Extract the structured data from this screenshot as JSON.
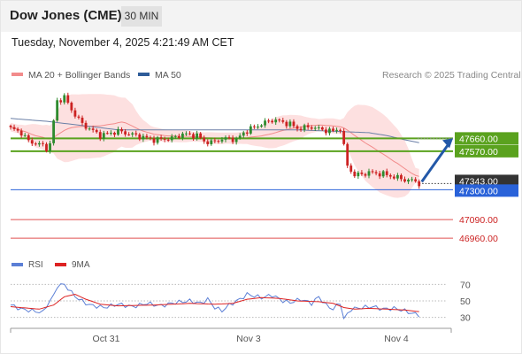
{
  "header": {
    "title": "Dow Jones (CME)",
    "timeframe": "30 MIN"
  },
  "timestamp": "Tuesday, November 4, 2025 4:21:49 AM CET",
  "legend": {
    "items": [
      {
        "label": "MA 20 + Bollinger Bands",
        "color": "#f28b8b"
      },
      {
        "label": "MA 50",
        "color": "#2e5c99"
      }
    ],
    "credit": "Research © 2025 Trading Central"
  },
  "colors": {
    "up": "#2e8b2e",
    "down": "#cc2222",
    "support_green": "#5aa21e",
    "pivot_blue": "#2962d9",
    "resistance_red": "#e05050",
    "bb_fill": "#fde0e0"
  },
  "chart_data": [
    {
      "type": "candlestick",
      "x_tick_labels": [
        "Oct 31",
        "Nov 3",
        "Nov 4"
      ],
      "ylim": [
        46880,
        48010
      ],
      "key_levels": [
        {
          "label": "47660.00",
          "value": 47660,
          "style": "green"
        },
        {
          "label": "47570.00",
          "value": 47570,
          "style": "green"
        },
        {
          "label": "47343.00",
          "value": 47343,
          "style": "last"
        },
        {
          "label": "47300.00",
          "value": 47300,
          "style": "pivot"
        },
        {
          "label": "47090.00",
          "value": 47090,
          "style": "red"
        },
        {
          "label": "46960.00",
          "value": 46960,
          "style": "red"
        }
      ],
      "close_anchors": [
        [
          0,
          47730
        ],
        [
          3,
          47700
        ],
        [
          5,
          47640
        ],
        [
          9,
          47610
        ],
        [
          10,
          47590
        ],
        [
          11,
          47620
        ],
        [
          12,
          47780
        ],
        [
          13,
          47920
        ],
        [
          15,
          47950
        ],
        [
          17,
          47860
        ],
        [
          20,
          47760
        ],
        [
          25,
          47680
        ],
        [
          30,
          47710
        ],
        [
          35,
          47680
        ],
        [
          40,
          47650
        ],
        [
          45,
          47660
        ],
        [
          48,
          47690
        ],
        [
          52,
          47680
        ],
        [
          54,
          47640
        ],
        [
          56,
          47630
        ],
        [
          58,
          47650
        ],
        [
          61,
          47660
        ],
        [
          63,
          47650
        ],
        [
          65,
          47700
        ],
        [
          68,
          47740
        ],
        [
          71,
          47770
        ],
        [
          73,
          47790
        ],
        [
          75,
          47780
        ],
        [
          78,
          47760
        ],
        [
          80,
          47730
        ],
        [
          84,
          47740
        ],
        [
          87,
          47720
        ],
        [
          90,
          47710
        ],
        [
          92,
          47730
        ],
        [
          94,
          47470
        ],
        [
          96,
          47400
        ],
        [
          100,
          47420
        ],
        [
          104,
          47410
        ],
        [
          107,
          47390
        ],
        [
          110,
          47370
        ],
        [
          113,
          47360
        ],
        [
          114,
          47343
        ]
      ],
      "ma50_anchors": [
        [
          0,
          47800
        ],
        [
          10,
          47780
        ],
        [
          20,
          47750
        ],
        [
          30,
          47720
        ],
        [
          40,
          47720
        ],
        [
          60,
          47720
        ],
        [
          80,
          47720
        ],
        [
          90,
          47710
        ],
        [
          100,
          47700
        ],
        [
          105,
          47680
        ],
        [
          110,
          47650
        ],
        [
          114,
          47630
        ]
      ],
      "forecast_arrow": {
        "from": 47343,
        "to": 47660
      },
      "series": [
        {
          "name": "MA 20 + Bollinger Bands"
        },
        {
          "name": "MA 50"
        }
      ]
    },
    {
      "type": "line",
      "legend": [
        {
          "name": "RSI",
          "color": "#5b7fd6"
        },
        {
          "name": "9MA",
          "color": "#dd2222"
        }
      ],
      "ylim": [
        20,
        80
      ],
      "y_tick_labels": [
        "70",
        "50",
        "30"
      ],
      "reference_lines": [
        70,
        50,
        30
      ],
      "rsi_anchors": [
        [
          0,
          45
        ],
        [
          3,
          40
        ],
        [
          6,
          38
        ],
        [
          9,
          36
        ],
        [
          10,
          44
        ],
        [
          12,
          56
        ],
        [
          13,
          68
        ],
        [
          15,
          70
        ],
        [
          17,
          60
        ],
        [
          19,
          52
        ],
        [
          22,
          45
        ],
        [
          26,
          42
        ],
        [
          30,
          46
        ],
        [
          34,
          43
        ],
        [
          38,
          47
        ],
        [
          42,
          44
        ],
        [
          46,
          48
        ],
        [
          50,
          50
        ],
        [
          53,
          47
        ],
        [
          55,
          52
        ],
        [
          57,
          42
        ],
        [
          59,
          38
        ],
        [
          61,
          45
        ],
        [
          64,
          52
        ],
        [
          66,
          58
        ],
        [
          68,
          56
        ],
        [
          70,
          54
        ],
        [
          73,
          57
        ],
        [
          76,
          50
        ],
        [
          78,
          48
        ],
        [
          81,
          52
        ],
        [
          84,
          47
        ],
        [
          86,
          55
        ],
        [
          88,
          45
        ],
        [
          90,
          40
        ],
        [
          92,
          48
        ],
        [
          93,
          28
        ],
        [
          95,
          40
        ],
        [
          98,
          42
        ],
        [
          101,
          43
        ],
        [
          104,
          40
        ],
        [
          107,
          41
        ],
        [
          110,
          38
        ],
        [
          112,
          35
        ],
        [
          114,
          33
        ]
      ],
      "ma9_anchors": [
        [
          0,
          43
        ],
        [
          8,
          40
        ],
        [
          12,
          45
        ],
        [
          15,
          55
        ],
        [
          18,
          58
        ],
        [
          21,
          52
        ],
        [
          25,
          46
        ],
        [
          30,
          44
        ],
        [
          40,
          45
        ],
        [
          50,
          47
        ],
        [
          57,
          46
        ],
        [
          62,
          47
        ],
        [
          66,
          52
        ],
        [
          70,
          54
        ],
        [
          75,
          53
        ],
        [
          80,
          50
        ],
        [
          86,
          49
        ],
        [
          90,
          47
        ],
        [
          93,
          42
        ],
        [
          96,
          40
        ],
        [
          100,
          41
        ],
        [
          105,
          40
        ],
        [
          110,
          39
        ],
        [
          114,
          37
        ]
      ]
    }
  ]
}
